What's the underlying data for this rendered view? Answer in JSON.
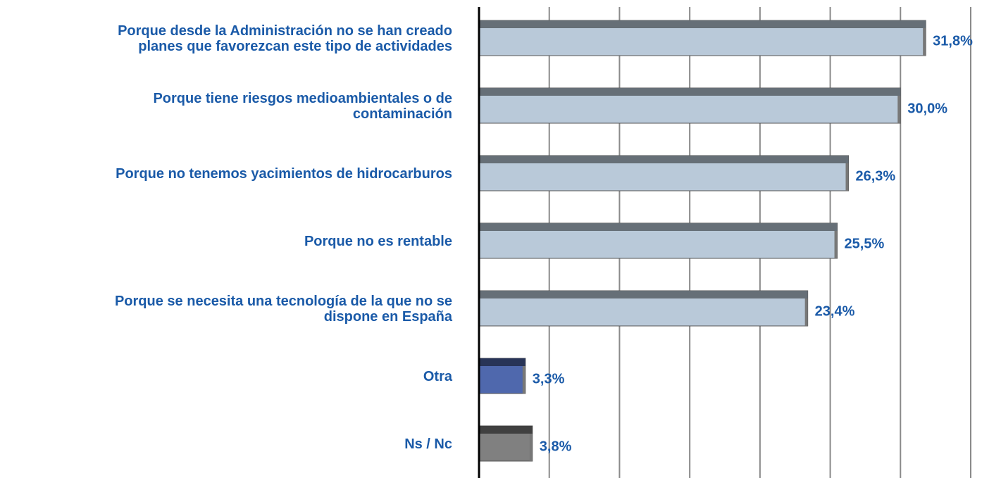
{
  "chart_data": {
    "type": "hbar",
    "categories": [
      "Porque desde la Administración no se han creado\nplanes que favorezcan este tipo de actividades",
      "Porque tiene riesgos medioambientales o de\ncontaminación",
      "Porque no tenemos yacimientos de hidrocarburos",
      "Porque no es rentable",
      "Porque se necesita una tecnología de la que no se\ndispone en España",
      "Otra",
      "Ns / Nc"
    ],
    "values": [
      31.8,
      30.0,
      26.3,
      25.5,
      23.4,
      3.3,
      3.8
    ],
    "value_labels": [
      "31,8%",
      "30,0%",
      "26,3%",
      "25,5%",
      "23,4%",
      "3,3%",
      "3,8%"
    ],
    "colors": [
      "#b9c9d9",
      "#b9c9d9",
      "#b9c9d9",
      "#b9c9d9",
      "#b9c9d9",
      "#4f68ad",
      "#808080"
    ],
    "xlim": [
      0,
      35
    ],
    "xticks": [
      0,
      5,
      10,
      15,
      20,
      25,
      30,
      35
    ],
    "grid": true
  }
}
